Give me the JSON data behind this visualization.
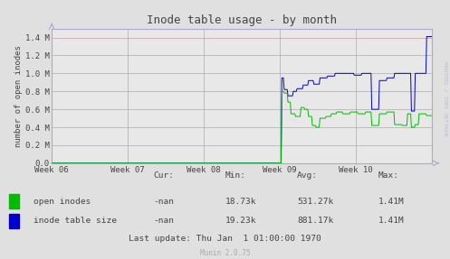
{
  "title": "Inode table usage - by month",
  "ylabel": "number of open inodes",
  "bg_color": "#e0e0e0",
  "plot_bg_color": "#e8e8e8",
  "grid_color": "#cc8888",
  "grid_color_minor": "#ddbbbb",
  "axis_color": "#aaaacc",
  "text_color": "#444444",
  "week_labels": [
    "Week 06",
    "Week 07",
    "Week 08",
    "Week 09",
    "Week 10"
  ],
  "ylim": [
    0,
    1500000.0
  ],
  "yticks": [
    0.0,
    200000,
    400000,
    600000,
    800000,
    1000000,
    1200000,
    1400000
  ],
  "ytick_labels": [
    "0.0",
    "0.2 M",
    "0.4 M",
    "0.6 M",
    "0.8 M",
    "1.0 M",
    "1.2 M",
    "1.4 M"
  ],
  "legend_items": [
    {
      "label": "open inodes",
      "color": "#00bb00"
    },
    {
      "label": "inode table size",
      "color": "#0000cc"
    }
  ],
  "stats": {
    "cur": [
      "-nan",
      "-nan"
    ],
    "min": [
      "18.73k",
      "19.23k"
    ],
    "avg": [
      "531.27k",
      "881.17k"
    ],
    "max": [
      "1.41M",
      "1.41M"
    ]
  },
  "footer": "Last update: Thu Jan  1 01:00:00 1970",
  "munin_version": "Munin 2.0.75",
  "watermark": "RRDTOOL / TOBI OETIKER"
}
